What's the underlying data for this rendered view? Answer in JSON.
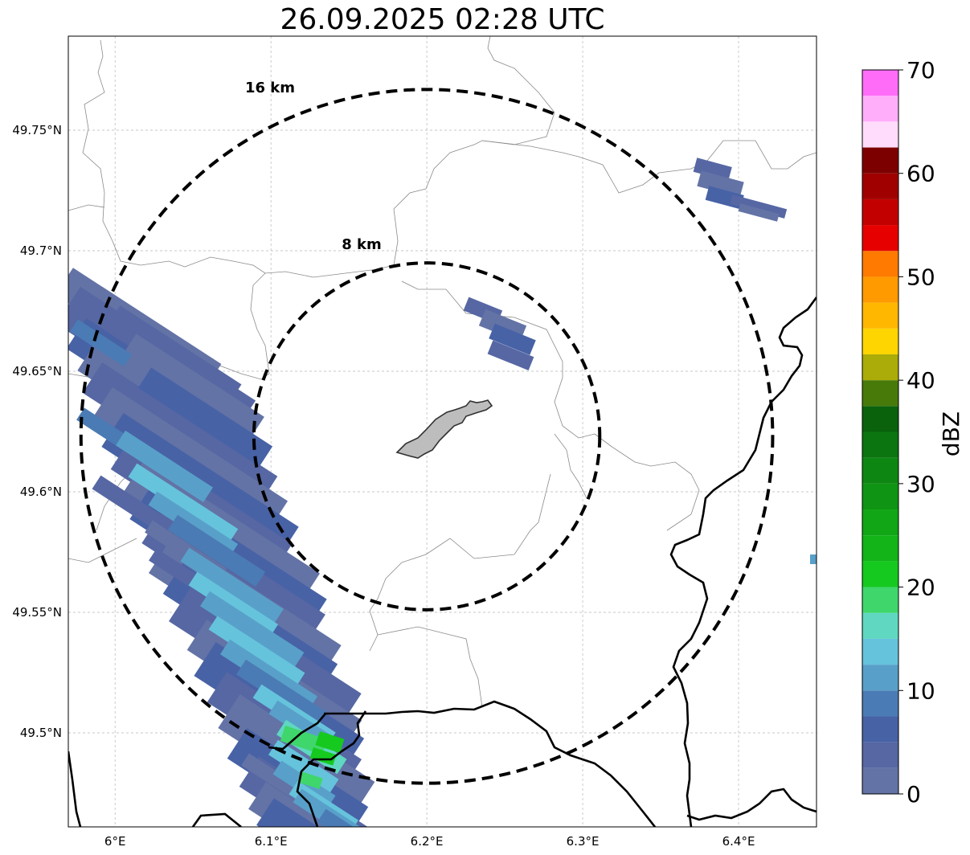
{
  "title": "26.09.2025 02:28 UTC",
  "x_ticks": [
    "6°E",
    "6.1°E",
    "6.2°E",
    "6.3°E",
    "6.4°E"
  ],
  "y_ticks": [
    "49.75°N",
    "49.7°N",
    "49.65°N",
    "49.6°N",
    "49.55°N",
    "49.5°N"
  ],
  "rings": [
    {
      "label": "16 km",
      "radius_km": 16
    },
    {
      "label": "8 km",
      "radius_km": 8
    }
  ],
  "colorbar": {
    "label": "dBZ",
    "ticks": [
      "0",
      "10",
      "20",
      "30",
      "40",
      "50",
      "60",
      "70"
    ],
    "colors": [
      "#6373a6",
      "#5667a3",
      "#4862a6",
      "#4b7bb4",
      "#58a0c9",
      "#66c3dc",
      "#5fd7c1",
      "#3fd66c",
      "#15c91f",
      "#12b418",
      "#10a616",
      "#0f9513",
      "#0e8712",
      "#0b7510",
      "#0a620d",
      "#487a0a",
      "#abab09",
      "#fed500",
      "#ffb700",
      "#ff9a00",
      "#ff7a00",
      "#e60000",
      "#c30000",
      "#a00000",
      "#7d0000",
      "#ffdcfc",
      "#ffaffa",
      "#ff6cf8",
      "#f032ed"
    ]
  },
  "map": {
    "center": {
      "lon": 6.2,
      "lat": 49.623
    },
    "extent": {
      "lon_min": 5.97,
      "lon_max": 6.45,
      "lat_min": 49.461,
      "lat_max": 49.789
    }
  }
}
